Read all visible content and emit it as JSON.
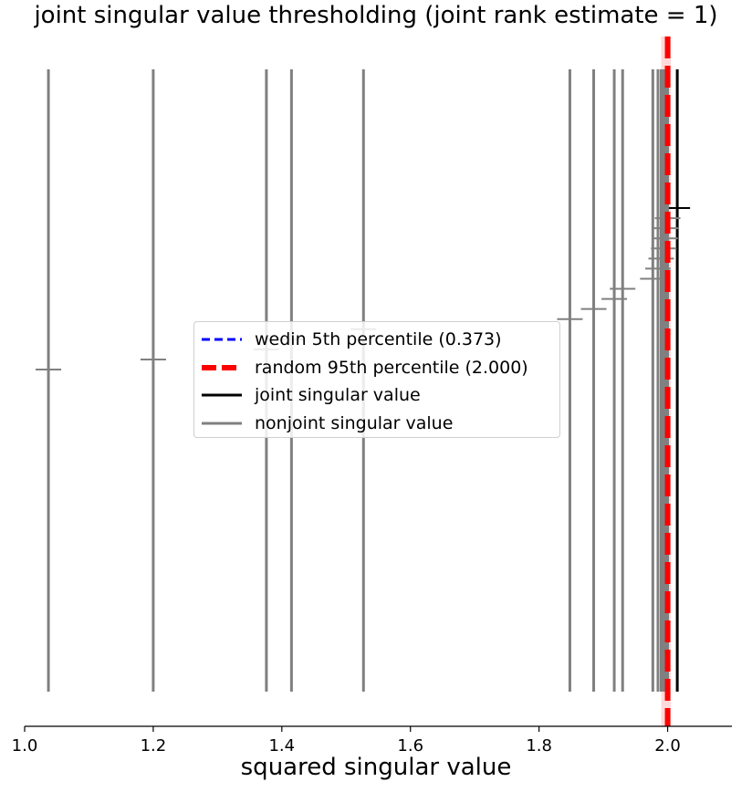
{
  "chart_data": {
    "type": "scatter",
    "title": "joint singular value thresholding (joint rank estimate = 1)",
    "xlabel": "squared singular value",
    "ylabel": "",
    "xlim": [
      1.0,
      2.1
    ],
    "xticks": [
      1.0,
      1.2,
      1.4,
      1.6,
      1.8,
      2.0
    ],
    "xtick_labels": [
      "1.0",
      "1.2",
      "1.4",
      "1.6",
      "1.8",
      "2.0"
    ],
    "grid": false,
    "legend_position": "center",
    "legend": [
      {
        "label": "wedin 5th percentile (0.373)",
        "color": "#0000ff",
        "style": "dashed"
      },
      {
        "label": "random 95th percentile (2.000)",
        "color": "#ff0000",
        "style": "dashed-thick"
      },
      {
        "label": "joint singular value",
        "color": "#000000",
        "style": "solid"
      },
      {
        "label": "nonjoint singular value",
        "color": "#808080",
        "style": "solid"
      }
    ],
    "thresholds": {
      "wedin_5th_percentile": 0.373,
      "random_95th_percentile": 2.0,
      "random_band": [
        1.99,
        2.005
      ]
    },
    "series": [
      {
        "name": "joint singular value",
        "color": "#000000",
        "values": [
          2.015
        ],
        "ranks": [
          1
        ]
      },
      {
        "name": "nonjoint singular value",
        "color": "#808080",
        "values": [
          2.0,
          1.998,
          1.996,
          1.994,
          1.99,
          1.985,
          1.977,
          1.93,
          1.917,
          1.885,
          1.848,
          1.527,
          1.415,
          1.376,
          1.2,
          1.037
        ],
        "ranks": [
          2,
          3,
          4,
          5,
          6,
          7,
          8,
          9,
          10,
          11,
          12,
          13,
          14,
          15,
          16,
          17
        ]
      }
    ]
  }
}
